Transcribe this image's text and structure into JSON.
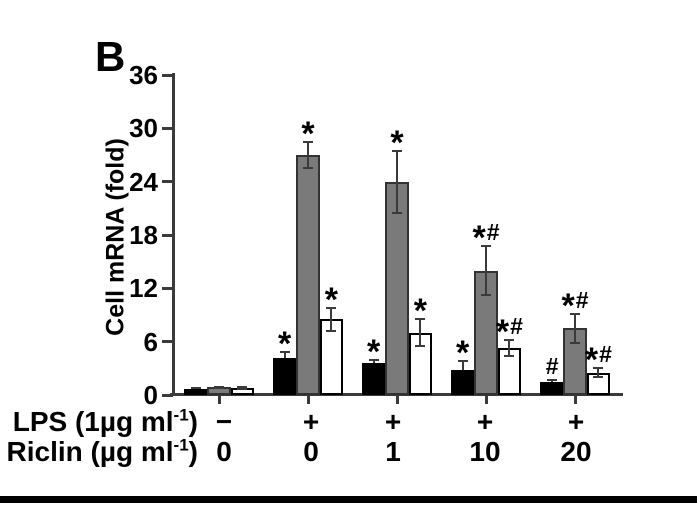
{
  "chart_data": {
    "type": "bar",
    "panel_label": "B",
    "title": "",
    "ylabel": "Cell mRNA (fold)",
    "ylim": [
      0,
      36
    ],
    "yticks": [
      0,
      6,
      12,
      18,
      24,
      30,
      36
    ],
    "grid": false,
    "legend": "none",
    "x_rows": [
      {
        "label_main": "LPS (1µg ml",
        "label_sup": "-1",
        "label_close": ")",
        "values": [
          "−",
          "+",
          "+",
          "+",
          "+"
        ]
      },
      {
        "label_main": "Riclin (µg ml",
        "label_sup": "-1",
        "label_close": ")",
        "values": [
          "0",
          "0",
          "1",
          "10",
          "20"
        ]
      }
    ],
    "series": [
      {
        "name": "black",
        "fill": "#000000",
        "values": [
          0.7,
          4.2,
          3.6,
          2.8,
          1.5
        ],
        "errors": [
          0.1,
          0.6,
          0.35,
          1.0,
          0.2
        ],
        "sig": [
          "",
          "*",
          "*",
          "*",
          "#"
        ]
      },
      {
        "name": "gray",
        "fill": "#7a7a7a",
        "values": [
          0.85,
          27,
          24,
          14,
          7.5
        ],
        "errors": [
          0.1,
          1.5,
          3.5,
          2.8,
          1.6
        ],
        "sig": [
          "",
          "*",
          "*",
          "*#",
          "*#"
        ]
      },
      {
        "name": "white",
        "fill": "#ffffff",
        "values": [
          0.8,
          8.5,
          7.0,
          5.3,
          2.5
        ],
        "errors": [
          0.1,
          1.3,
          1.5,
          0.9,
          0.5
        ],
        "sig": [
          "",
          "*",
          "*",
          "*#",
          "*#"
        ]
      }
    ]
  }
}
